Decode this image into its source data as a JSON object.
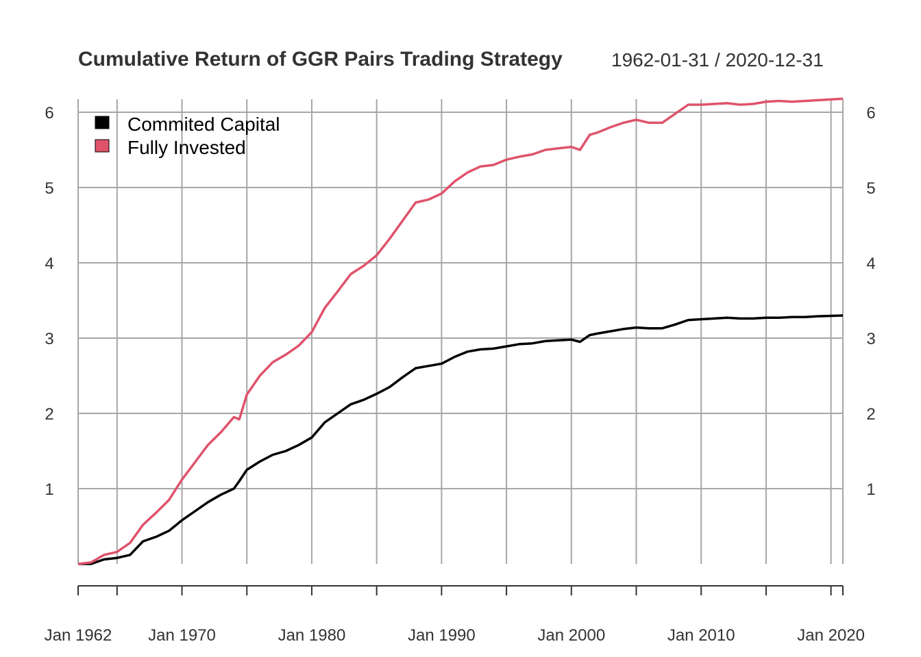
{
  "chart": {
    "title": "Cumulative Return of GGR Pairs Trading Strategy",
    "date_range": "1962-01-31 / 2020-12-31"
  },
  "colors": {
    "grid": "#a6a6a6",
    "axis_text": "#333333",
    "series_committed": "#000000",
    "series_fully": "#df536b"
  },
  "chart_data": {
    "type": "line",
    "title": "Cumulative Return of GGR Pairs Trading Strategy",
    "subtitle": "1962-01-31 / 2020-12-31",
    "xlabel": "",
    "ylabel": "",
    "xlim": [
      "1962-01-31",
      "2020-12-31"
    ],
    "ylim": [
      0,
      6.2
    ],
    "grid": true,
    "legend_position": "top-left",
    "x_tick_labels": [
      "Jan 1962",
      "Jan 1970",
      "Jan 1980",
      "Jan 1990",
      "Jan 2000",
      "Jan 2010",
      "Jan 2020"
    ],
    "y_tick_labels": [
      "1",
      "2",
      "3",
      "4",
      "5",
      "6"
    ],
    "series": [
      {
        "name": "Commited Capital",
        "color": "#000000",
        "points": [
          [
            "1962-01",
            0.0
          ],
          [
            "1963-01",
            0.0
          ],
          [
            "1964-01",
            0.06
          ],
          [
            "1965-01",
            0.08
          ],
          [
            "1966-01",
            0.12
          ],
          [
            "1967-01",
            0.3
          ],
          [
            "1968-01",
            0.36
          ],
          [
            "1969-01",
            0.44
          ],
          [
            "1970-01",
            0.58
          ],
          [
            "1971-01",
            0.7
          ],
          [
            "1972-01",
            0.82
          ],
          [
            "1973-01",
            0.92
          ],
          [
            "1974-01",
            1.0
          ],
          [
            "1974-06",
            1.1
          ],
          [
            "1975-01",
            1.25
          ],
          [
            "1976-01",
            1.36
          ],
          [
            "1977-01",
            1.45
          ],
          [
            "1978-01",
            1.5
          ],
          [
            "1979-01",
            1.58
          ],
          [
            "1980-01",
            1.68
          ],
          [
            "1981-01",
            1.88
          ],
          [
            "1982-01",
            2.0
          ],
          [
            "1983-01",
            2.12
          ],
          [
            "1984-01",
            2.18
          ],
          [
            "1985-01",
            2.26
          ],
          [
            "1986-01",
            2.35
          ],
          [
            "1987-01",
            2.48
          ],
          [
            "1988-01",
            2.6
          ],
          [
            "1989-01",
            2.63
          ],
          [
            "1990-01",
            2.66
          ],
          [
            "1991-01",
            2.75
          ],
          [
            "1992-01",
            2.82
          ],
          [
            "1993-01",
            2.85
          ],
          [
            "1994-01",
            2.86
          ],
          [
            "1995-01",
            2.89
          ],
          [
            "1996-01",
            2.92
          ],
          [
            "1997-01",
            2.93
          ],
          [
            "1998-01",
            2.96
          ],
          [
            "1999-01",
            2.97
          ],
          [
            "2000-01",
            2.98
          ],
          [
            "2000-09",
            2.95
          ],
          [
            "2001-06",
            3.04
          ],
          [
            "2002-01",
            3.06
          ],
          [
            "2003-01",
            3.09
          ],
          [
            "2004-01",
            3.12
          ],
          [
            "2005-01",
            3.14
          ],
          [
            "2006-01",
            3.13
          ],
          [
            "2007-01",
            3.13
          ],
          [
            "2008-01",
            3.18
          ],
          [
            "2009-01",
            3.24
          ],
          [
            "2010-01",
            3.25
          ],
          [
            "2011-01",
            3.26
          ],
          [
            "2012-01",
            3.27
          ],
          [
            "2013-01",
            3.26
          ],
          [
            "2014-01",
            3.26
          ],
          [
            "2015-01",
            3.27
          ],
          [
            "2016-01",
            3.27
          ],
          [
            "2017-01",
            3.28
          ],
          [
            "2018-01",
            3.28
          ],
          [
            "2019-01",
            3.29
          ],
          [
            "2020-12",
            3.3
          ]
        ]
      },
      {
        "name": "Fully Invested",
        "color": "#df536b",
        "points": [
          [
            "1962-01",
            0.0
          ],
          [
            "1963-01",
            0.02
          ],
          [
            "1964-01",
            0.12
          ],
          [
            "1965-01",
            0.16
          ],
          [
            "1966-01",
            0.28
          ],
          [
            "1967-01",
            0.52
          ],
          [
            "1968-01",
            0.68
          ],
          [
            "1969-01",
            0.85
          ],
          [
            "1970-01",
            1.12
          ],
          [
            "1971-01",
            1.35
          ],
          [
            "1972-01",
            1.58
          ],
          [
            "1973-01",
            1.75
          ],
          [
            "1974-01",
            1.95
          ],
          [
            "1974-06",
            1.92
          ],
          [
            "1975-01",
            2.25
          ],
          [
            "1976-01",
            2.5
          ],
          [
            "1977-01",
            2.68
          ],
          [
            "1978-01",
            2.78
          ],
          [
            "1979-01",
            2.9
          ],
          [
            "1980-01",
            3.08
          ],
          [
            "1981-01",
            3.4
          ],
          [
            "1982-01",
            3.62
          ],
          [
            "1983-01",
            3.85
          ],
          [
            "1984-01",
            3.96
          ],
          [
            "1985-01",
            4.1
          ],
          [
            "1986-01",
            4.32
          ],
          [
            "1987-01",
            4.56
          ],
          [
            "1988-01",
            4.8
          ],
          [
            "1989-01",
            4.84
          ],
          [
            "1990-01",
            4.92
          ],
          [
            "1991-01",
            5.08
          ],
          [
            "1992-01",
            5.2
          ],
          [
            "1993-01",
            5.28
          ],
          [
            "1994-01",
            5.3
          ],
          [
            "1995-01",
            5.37
          ],
          [
            "1996-01",
            5.41
          ],
          [
            "1997-01",
            5.44
          ],
          [
            "1998-01",
            5.5
          ],
          [
            "1999-01",
            5.52
          ],
          [
            "2000-01",
            5.54
          ],
          [
            "2000-09",
            5.5
          ],
          [
            "2001-06",
            5.7
          ],
          [
            "2002-01",
            5.73
          ],
          [
            "2003-01",
            5.8
          ],
          [
            "2004-01",
            5.86
          ],
          [
            "2005-01",
            5.9
          ],
          [
            "2006-01",
            5.86
          ],
          [
            "2007-01",
            5.86
          ],
          [
            "2008-01",
            5.98
          ],
          [
            "2009-01",
            6.1
          ],
          [
            "2010-01",
            6.1
          ],
          [
            "2011-01",
            6.11
          ],
          [
            "2012-01",
            6.12
          ],
          [
            "2013-01",
            6.1
          ],
          [
            "2014-01",
            6.11
          ],
          [
            "2015-01",
            6.14
          ],
          [
            "2016-01",
            6.15
          ],
          [
            "2017-01",
            6.14
          ],
          [
            "2018-01",
            6.15
          ],
          [
            "2019-01",
            6.16
          ],
          [
            "2020-12",
            6.18
          ]
        ]
      }
    ]
  }
}
